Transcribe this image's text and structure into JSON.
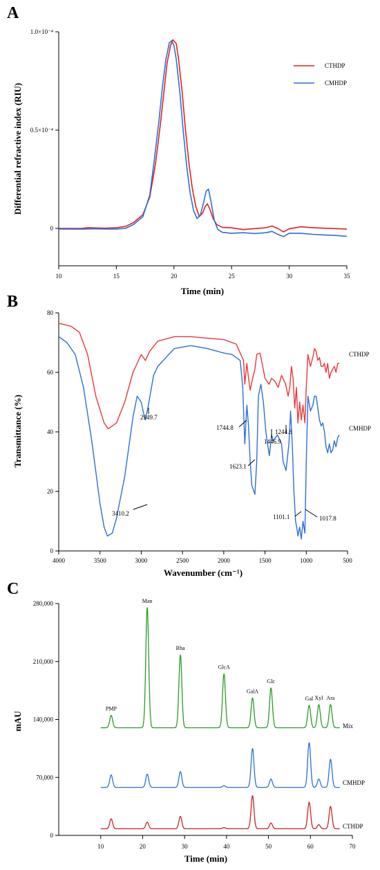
{
  "chart_data": [
    {
      "panel": "A",
      "type": "line",
      "xlabel": "Time (min)",
      "ylabel": "Differential refractive index (RIU)",
      "xlim": [
        10,
        35
      ],
      "ylim": [
        -0.17,
        1.0
      ],
      "xticks": [
        10,
        15,
        20,
        25,
        30,
        35
      ],
      "yticks": [
        {
          "value": 1.0,
          "label": "1.0×10⁻⁴"
        },
        {
          "value": 0.5,
          "label": "0.5×10⁻⁴"
        },
        {
          "value": 0,
          "label": "0"
        }
      ],
      "legend_position": "top-right",
      "series": [
        {
          "name": "CTHDP",
          "color": "#e02020",
          "x": [
            10,
            12,
            12.6,
            13.3,
            14,
            15,
            15.8,
            16.5,
            17.3,
            17.9,
            18.4,
            18.8,
            19.1,
            19.4,
            19.7,
            19.9,
            20.2,
            20.4,
            20.7,
            21.0,
            21.3,
            21.6,
            21.9,
            22.2,
            22.5,
            22.7,
            22.9,
            23.1,
            23.4,
            23.7,
            24.2,
            25,
            26,
            27,
            28,
            28.5,
            29,
            29.5,
            30,
            31,
            32,
            33,
            34,
            35
          ],
          "y": [
            0,
            0,
            0.004,
            0.002,
            0.001,
            0.003,
            0.01,
            0.03,
            0.07,
            0.16,
            0.33,
            0.52,
            0.68,
            0.84,
            0.93,
            0.96,
            0.94,
            0.86,
            0.7,
            0.5,
            0.33,
            0.2,
            0.11,
            0.06,
            0.08,
            0.11,
            0.125,
            0.1,
            0.05,
            0.02,
            0.005,
            0.003,
            -0.006,
            -0.001,
            0.004,
            0.012,
            0.0,
            -0.018,
            -0.002,
            0.008,
            0.004,
            0.001,
            -0.001,
            -0.003
          ]
        },
        {
          "name": "CMHDP",
          "color": "#2a6fd6",
          "x": [
            10,
            12,
            13,
            14,
            15,
            15.8,
            16.5,
            17.3,
            17.9,
            18.3,
            18.7,
            19.0,
            19.3,
            19.6,
            19.8,
            20.0,
            20.2,
            20.5,
            20.8,
            21.1,
            21.4,
            21.7,
            22.0,
            22.3,
            22.6,
            22.8,
            23.0,
            23.2,
            23.5,
            23.8,
            24.2,
            25,
            26,
            27,
            28,
            28.5,
            29,
            29.5,
            30,
            31,
            32,
            33,
            34,
            35
          ],
          "y": [
            -0.003,
            -0.004,
            -0.002,
            -0.003,
            -0.003,
            0.0,
            0.02,
            0.06,
            0.17,
            0.35,
            0.55,
            0.72,
            0.86,
            0.945,
            0.955,
            0.93,
            0.86,
            0.7,
            0.5,
            0.32,
            0.18,
            0.09,
            0.05,
            0.07,
            0.14,
            0.19,
            0.2,
            0.14,
            0.04,
            -0.005,
            -0.02,
            -0.025,
            -0.022,
            -0.026,
            -0.022,
            -0.015,
            -0.03,
            -0.042,
            -0.025,
            -0.025,
            -0.03,
            -0.033,
            -0.036,
            -0.04
          ]
        }
      ]
    },
    {
      "panel": "B",
      "type": "line",
      "xlabel": "Wavenumber (cm⁻¹)",
      "ylabel": "Transmittance (%)",
      "xlim": [
        4000,
        500
      ],
      "ylim": [
        0,
        80
      ],
      "xticks": [
        4000,
        3500,
        3000,
        2500,
        2000,
        1500,
        1000,
        500
      ],
      "yticks": [
        0,
        20,
        40,
        60,
        80
      ],
      "series": [
        {
          "name": "CTHDP",
          "color": "#e8383a",
          "x": [
            4000,
            3850,
            3750,
            3650,
            3550,
            3450,
            3400,
            3300,
            3200,
            3100,
            3000,
            2950,
            2900,
            2800,
            2600,
            2400,
            2200,
            2000,
            1850,
            1760,
            1745,
            1720,
            1700,
            1680,
            1650,
            1623,
            1600,
            1560,
            1500,
            1450,
            1420,
            1380,
            1340,
            1300,
            1250,
            1220,
            1200,
            1180,
            1160,
            1140,
            1120,
            1101,
            1080,
            1060,
            1040,
            1017,
            1000,
            980,
            950,
            920,
            900,
            880,
            860,
            840,
            820,
            800,
            780,
            760,
            740,
            720,
            700,
            680,
            660,
            640,
            620,
            600
          ],
          "y": [
            76.5,
            75.5,
            73.5,
            66,
            52,
            43,
            41,
            43,
            50,
            60,
            66,
            64,
            67,
            70.5,
            72,
            72,
            71.5,
            71,
            69.5,
            64,
            56,
            63,
            58,
            54,
            58,
            61,
            66,
            66.5,
            58,
            56,
            58,
            57,
            55,
            59,
            56,
            52,
            55,
            62,
            58,
            48,
            55,
            43,
            50,
            44,
            49,
            43,
            55,
            66,
            62,
            65,
            68,
            67,
            64,
            65,
            62,
            62,
            63,
            60,
            63,
            58,
            60,
            61,
            62,
            60,
            63,
            63
          ]
        },
        {
          "name": "CMHDP",
          "color": "#2b6fd8",
          "x": [
            4000,
            3900,
            3800,
            3700,
            3600,
            3500,
            3450,
            3410,
            3350,
            3300,
            3200,
            3100,
            3050,
            3000,
            2970,
            2950,
            2920,
            2850,
            2800,
            2600,
            2400,
            2200,
            2000,
            1900,
            1800,
            1770,
            1745,
            1720,
            1700,
            1680,
            1660,
            1623,
            1600,
            1580,
            1550,
            1520,
            1490,
            1470,
            1447,
            1420,
            1400,
            1350,
            1300,
            1280,
            1245,
            1210,
            1190,
            1170,
            1150,
            1130,
            1110,
            1101,
            1080,
            1060,
            1040,
            1017,
            1000,
            980,
            950,
            920,
            900,
            880,
            860,
            840,
            820,
            800,
            780,
            760,
            740,
            720,
            700,
            680,
            660,
            640,
            620,
            600
          ],
          "y": [
            72,
            70,
            66,
            55,
            37,
            16,
            8,
            5,
            6,
            11,
            25,
            45,
            52,
            50,
            46,
            44,
            48,
            59,
            62,
            68,
            69,
            68,
            66.5,
            66,
            64,
            55,
            36,
            49,
            42,
            30,
            22,
            19,
            30,
            52,
            56,
            50,
            40,
            36,
            32,
            39,
            37,
            39,
            36,
            30,
            27,
            36,
            47,
            36,
            20,
            10,
            7,
            5,
            8,
            4,
            10,
            6,
            30,
            52,
            47,
            49,
            52,
            52,
            48,
            44,
            42,
            43,
            40,
            35,
            33,
            36,
            33,
            34,
            37,
            35,
            38,
            39
          ]
        }
      ],
      "annotations": [
        "3410.2",
        "2949.7",
        "1744.8",
        "1623.1",
        "1446.9",
        "1244.8",
        "1101.1",
        "1017.8"
      ]
    },
    {
      "panel": "C",
      "type": "line",
      "xlabel": "Time (min)",
      "ylabel": "mAU",
      "xlim": [
        0,
        70
      ],
      "ylim": [
        0,
        280000
      ],
      "xticks": [
        10,
        20,
        30,
        40,
        50,
        60,
        70
      ],
      "yticks": [
        {
          "value": 0,
          "label": "0"
        },
        {
          "value": 70000,
          "label": "70,000"
        },
        {
          "value": 140000,
          "label": "140,000"
        },
        {
          "value": 210000,
          "label": "210,000"
        },
        {
          "value": 280000,
          "label": "280,000"
        }
      ],
      "series": [
        {
          "name": "Mix",
          "color": "#2a9a2a",
          "baseline": 130000,
          "peaks": [
            {
              "label": "PMP",
              "x": 12.5,
              "height": 15000
            },
            {
              "label": "Man",
              "x": 21.1,
              "height": 145000
            },
            {
              "label": "Rha",
              "x": 29.0,
              "height": 88000
            },
            {
              "label": "GlcA",
              "x": 39.4,
              "height": 65000
            },
            {
              "label": "GalA",
              "x": 46.2,
              "height": 36000
            },
            {
              "label": "Glc",
              "x": 50.6,
              "height": 48000
            },
            {
              "label": "Gal",
              "x": 59.7,
              "height": 27000
            },
            {
              "label": "Xyl",
              "x": 62.0,
              "height": 28000
            },
            {
              "label": "Ara",
              "x": 64.8,
              "height": 28000
            }
          ]
        },
        {
          "name": "CMHDP",
          "color": "#2b6fd8",
          "baseline": 58000,
          "peaks": [
            {
              "x": 12.5,
              "height": 15000
            },
            {
              "x": 21.1,
              "height": 16000
            },
            {
              "x": 29.0,
              "height": 19000
            },
            {
              "x": 39.4,
              "height": 2000
            },
            {
              "x": 46.2,
              "height": 47000
            },
            {
              "x": 50.6,
              "height": 10000
            },
            {
              "x": 59.7,
              "height": 54000
            },
            {
              "x": 62.0,
              "height": 10000
            },
            {
              "x": 64.8,
              "height": 34000
            }
          ]
        },
        {
          "name": "CTHDP",
          "color": "#cc2222",
          "baseline": 8000,
          "peaks": [
            {
              "x": 12.5,
              "height": 12000
            },
            {
              "x": 21.1,
              "height": 8000
            },
            {
              "x": 29.0,
              "height": 15000
            },
            {
              "x": 39.4,
              "height": 1500
            },
            {
              "x": 46.2,
              "height": 40000
            },
            {
              "x": 50.6,
              "height": 7000
            },
            {
              "x": 59.7,
              "height": 32000
            },
            {
              "x": 62.0,
              "height": 5000
            },
            {
              "x": 64.8,
              "height": 27000
            }
          ]
        }
      ]
    }
  ]
}
